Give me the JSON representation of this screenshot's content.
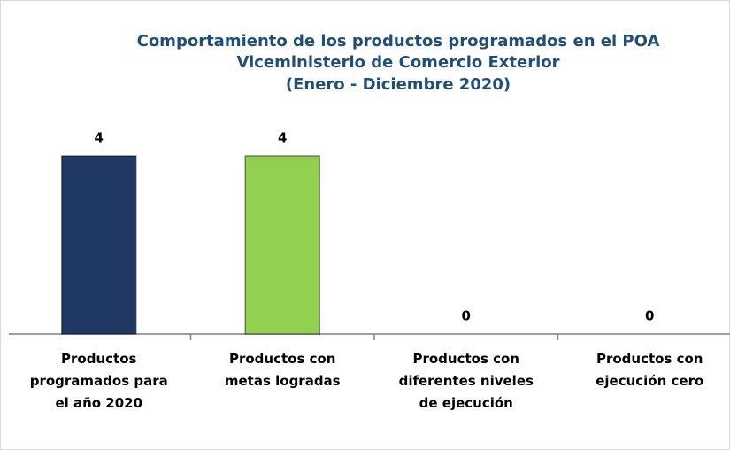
{
  "chart_data": {
    "type": "bar",
    "title": [
      "Comportamiento de los productos programados en el POA",
      "Viceministerio de Comercio Exterior",
      "(Enero - Diciembre 2020)"
    ],
    "categories": [
      "Productos programados para el año 2020",
      "Productos con metas logradas",
      "Productos con diferentes niveles de ejecución",
      "Productos con ejecución cero"
    ],
    "values": [
      4,
      4,
      0,
      0
    ],
    "colors": [
      "#1f3864",
      "#92d050",
      "#c0504d",
      "#f79646"
    ]
  }
}
